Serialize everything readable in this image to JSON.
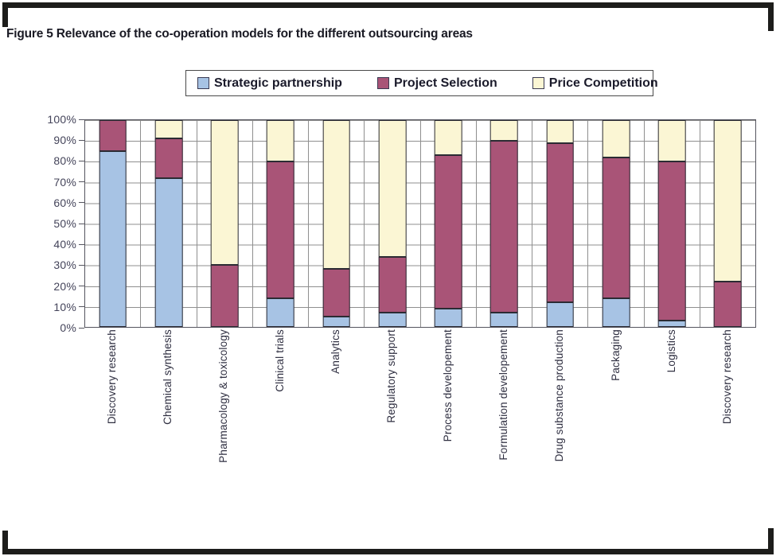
{
  "figure_caption": "Figure 5 Relevance of the co-operation models for the different outsourcing areas",
  "chart_data": {
    "type": "bar",
    "stacked": true,
    "title": "Figure 5 Relevance of the co-operation models for the different outsourcing areas",
    "xlabel": "",
    "ylabel": "",
    "ylim": [
      0,
      100
    ],
    "grid": true,
    "legend_position": "top-center",
    "yticks": [
      "100%",
      "90%",
      "80%",
      "70%",
      "60%",
      "50%",
      "40%",
      "30%",
      "20%",
      "10%",
      "0%"
    ],
    "categories": [
      "Discovery research",
      "Chemical synthesis",
      "Pharmacology & toxicology",
      "Clinical trials",
      "Analytics",
      "Regulatory support",
      "Process developement",
      "Formulation developement",
      "Drug substance production",
      "Packaging",
      "Logistics",
      "Discovery research"
    ],
    "series": [
      {
        "name": "Strategic partnership",
        "color": "#a7c3e4",
        "values": [
          85,
          72,
          0,
          14,
          5,
          7,
          9,
          7,
          12,
          14,
          3,
          0
        ]
      },
      {
        "name": "Project Selection",
        "color": "#a95477",
        "values": [
          15,
          19,
          30,
          66,
          23,
          27,
          74,
          83,
          77,
          68,
          77,
          22
        ]
      },
      {
        "name": "Price Competition",
        "color": "#fbf6d4",
        "values": [
          0,
          9,
          70,
          20,
          72,
          66,
          17,
          10,
          11,
          18,
          20,
          78
        ]
      }
    ],
    "colors": {
      "segment_border": "#2b2b33",
      "grid_line": "#8f8f8f",
      "plot_frame": "#55555f",
      "frame_bracket": "#1d1d1b"
    }
  }
}
